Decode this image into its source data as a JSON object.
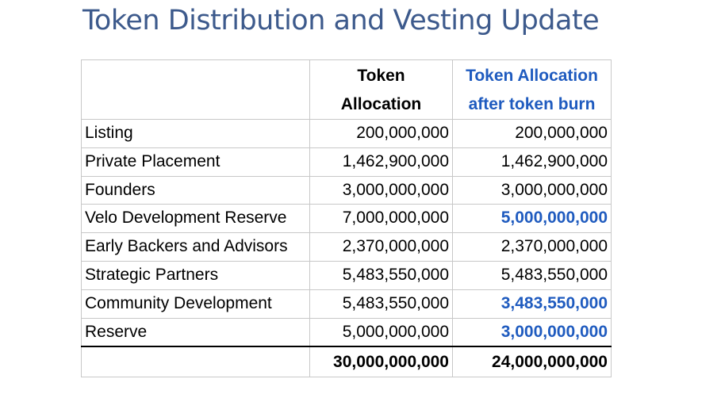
{
  "title": "Token Distribution and Vesting Update",
  "table": {
    "headers": {
      "label": "",
      "allocation_line1": "Token",
      "allocation_line2": "Allocation",
      "after_burn_line1": "Token Allocation",
      "after_burn_line2": "after token burn"
    },
    "rows": [
      {
        "label": "Listing",
        "allocation": "200,000,000",
        "after_burn": "200,000,000",
        "changed": false
      },
      {
        "label": "Private Placement",
        "allocation": "1,462,900,000",
        "after_burn": "1,462,900,000",
        "changed": false
      },
      {
        "label": "Founders",
        "allocation": "3,000,000,000",
        "after_burn": "3,000,000,000",
        "changed": false
      },
      {
        "label": "Velo Development Reserve",
        "allocation": "7,000,000,000",
        "after_burn": "5,000,000,000",
        "changed": true
      },
      {
        "label": "Early Backers and Advisors",
        "allocation": "2,370,000,000",
        "after_burn": "2,370,000,000",
        "changed": false
      },
      {
        "label": "Strategic Partners",
        "allocation": "5,483,550,000",
        "after_burn": "5,483,550,000",
        "changed": false
      },
      {
        "label": "Community Development",
        "allocation": "5,483,550,000",
        "after_burn": "3,483,550,000",
        "changed": true
      },
      {
        "label": "Reserve",
        "allocation": "5,000,000,000",
        "after_burn": "3,000,000,000",
        "changed": true
      }
    ],
    "total": {
      "label": "",
      "allocation": "30,000,000,000",
      "after_burn": "24,000,000,000"
    }
  },
  "colors": {
    "title": "#3d5a8c",
    "highlight": "#1f5bbf",
    "grid": "#c8c8c8"
  }
}
